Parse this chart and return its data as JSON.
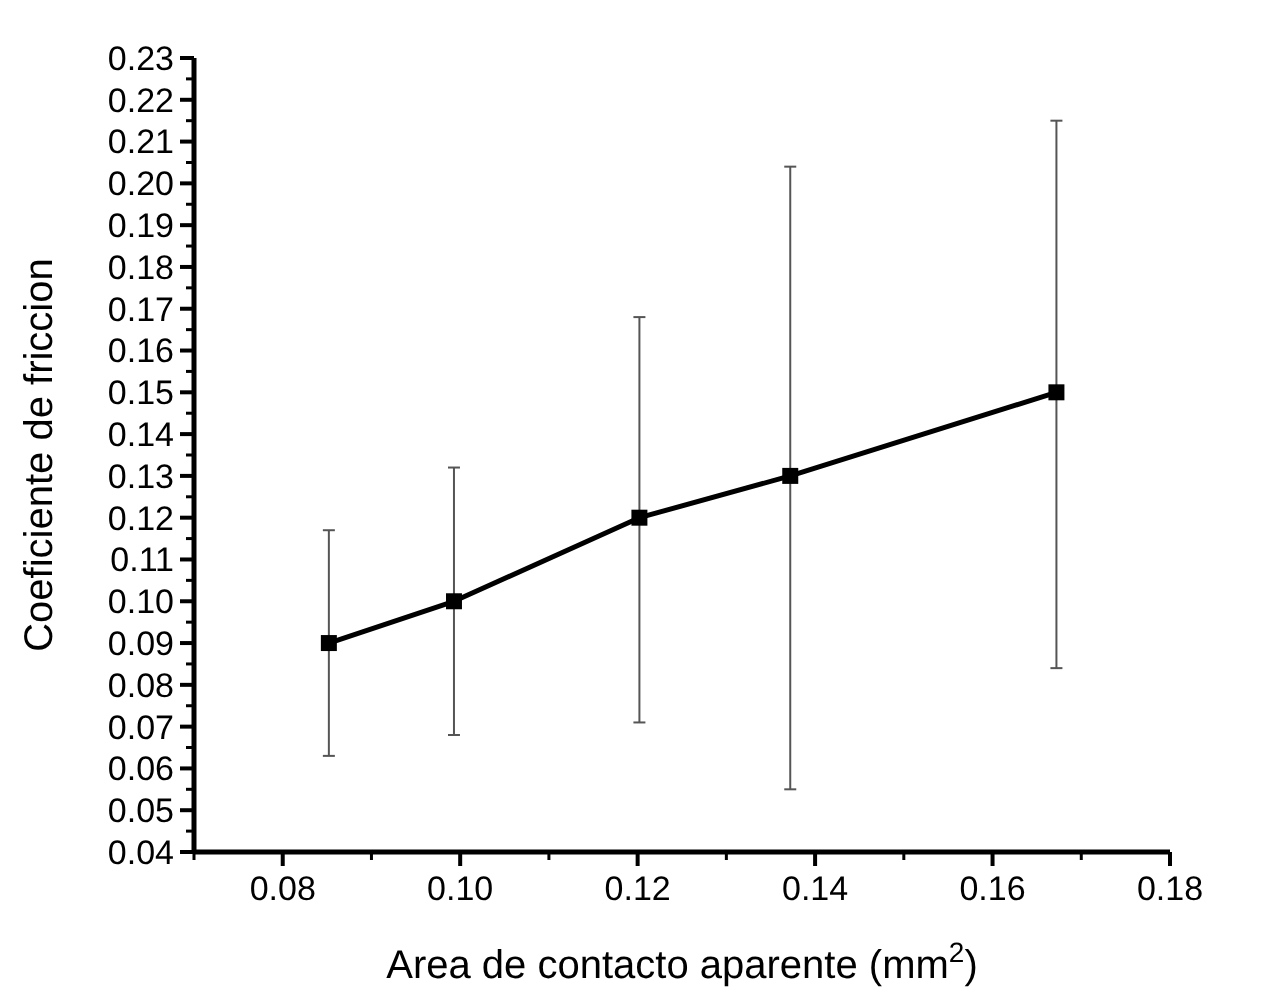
{
  "chart_data": {
    "type": "line",
    "xlabel": "Area de contacto aparente (mm$^{2}$)",
    "ylabel": "Coeficiente de friccion",
    "x": [
      0.0852,
      0.0993,
      0.1202,
      0.1372,
      0.1672
    ],
    "series": [
      {
        "color": "#000000",
        "values": [
          0.09,
          0.1,
          0.12,
          0.13,
          0.15
        ],
        "errors": [
          [
            0.063,
            0.117
          ],
          [
            0.068,
            0.132
          ],
          [
            0.071,
            0.168
          ],
          [
            0.055,
            0.204
          ],
          [
            0.084,
            0.215
          ]
        ]
      }
    ],
    "marker": "square",
    "line_style": "solid",
    "grid": false,
    "xlim": [
      0.07,
      0.18
    ],
    "xticks": [
      0.08,
      {
        "value": 0.1,
        "label": "0.10"
      },
      0.12,
      0.14,
      0.16,
      0.18
    ],
    "ylim": [
      0.04,
      0.23
    ],
    "yticks": [
      0.04,
      0.05,
      0.06,
      0.07,
      0.08,
      0.09,
      {
        "value": 0.1,
        "label": "0.10"
      },
      0.11,
      0.12,
      0.13,
      0.14,
      0.15,
      0.16,
      0.17,
      0.18,
      0.19,
      {
        "value": 0.2,
        "label": "0.20"
      },
      0.21,
      0.22,
      0.23
    ]
  }
}
